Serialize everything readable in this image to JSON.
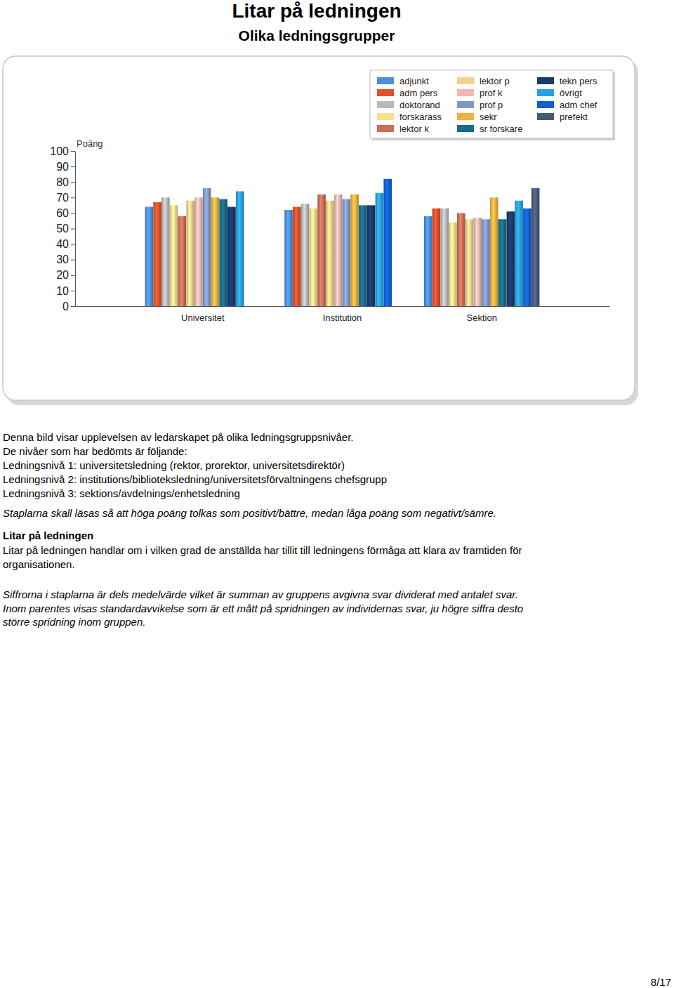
{
  "chart_data": {
    "type": "bar",
    "title": "Litar på ledningen",
    "subtitle": "Olika ledningsgrupper",
    "y_label": "Poäng",
    "categories": [
      "Universitet",
      "Institution",
      "Sektion"
    ],
    "ylim": [
      0,
      100
    ],
    "yticks": [
      0,
      10,
      20,
      30,
      40,
      50,
      60,
      70,
      80,
      90,
      100
    ],
    "grid": false,
    "legend": "top-right",
    "series": [
      {
        "name": "adjunkt",
        "color": "#4a8fe0",
        "values": [
          64,
          62,
          58
        ]
      },
      {
        "name": "adm pers",
        "color": "#e0502a",
        "values": [
          67,
          64,
          63
        ]
      },
      {
        "name": "doktorand",
        "color": "#b8b8b8",
        "values": [
          70,
          66,
          63
        ]
      },
      {
        "name": "forskarass",
        "color": "#f8e08a",
        "values": [
          65,
          63,
          54
        ]
      },
      {
        "name": "lektor k",
        "color": "#c87058",
        "values": [
          58,
          72,
          60
        ]
      },
      {
        "name": "lektor p",
        "color": "#f5d08a",
        "values": [
          68,
          68,
          56
        ]
      },
      {
        "name": "prof k",
        "color": "#f0b8b0",
        "values": [
          70,
          72,
          57
        ]
      },
      {
        "name": "prof p",
        "color": "#8098c8",
        "values": [
          76,
          69,
          56
        ]
      },
      {
        "name": "sekr",
        "color": "#f0b040",
        "values": [
          70,
          72,
          70
        ]
      },
      {
        "name": "sr forskare",
        "color": "#1a6a8a",
        "values": [
          69,
          65,
          56
        ]
      },
      {
        "name": "tekn pers",
        "color": "#1a3a6a",
        "values": [
          64,
          65,
          61
        ]
      },
      {
        "name": "övrigt",
        "color": "#28a0e0",
        "values": [
          74,
          73,
          68
        ]
      },
      {
        "name": "adm chef",
        "color": "#1060d0",
        "values": [
          null,
          82,
          63
        ]
      },
      {
        "name": "prefekt",
        "color": "#4a5a7a",
        "values": [
          null,
          null,
          76
        ]
      }
    ]
  },
  "page": {
    "intro": [
      "Denna bild visar upplevelsen av ledarskapet på olika ledningsgruppsnivåer.",
      "De nivåer som har bedömts är följande:",
      "Ledningsnivå 1: universitetsledning (rektor, prorektor, universitetsdirektör)",
      "Ledningsnivå 2: institutions/biblioteksledning/universitetsförvaltningens chefsgrupp",
      "Ledningsnivå 3: sektions/avdelnings/enhetsledning"
    ],
    "reading_note": "Staplarna skall läsas så att höga poäng tolkas som positivt/bättre, medan låga poäng som negativt/sämre.",
    "section_heading": "Litar på ledningen",
    "section_text": [
      "Litar på ledningen handlar om i vilken grad de anställda har tillit till ledningens förmåga att klara av framtiden för",
      "organisationen."
    ],
    "footnote": [
      "Siffrorna i staplarna är dels medelvärde vilket är summan av gruppens avgivna svar dividerat med antalet svar.",
      "Inom parentes visas standardavvikelse som är ett mått på spridningen av individernas svar, ju högre siffra desto",
      "större spridning inom gruppen."
    ],
    "page_number": "8/17"
  }
}
